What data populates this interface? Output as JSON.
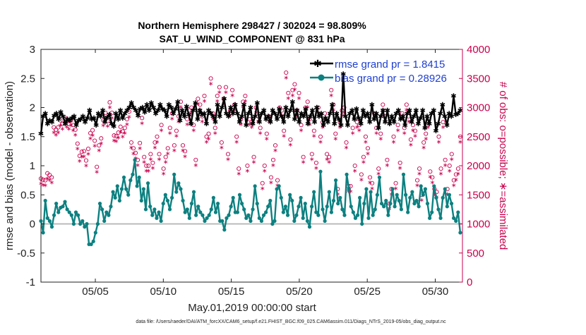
{
  "chart_data": {
    "type": "line",
    "title": "Northern Hemisphere 298427 / 302024 = 98.809%",
    "subtitle": "SAT_U_WIND_COMPONENT @ 831 hPa",
    "xlabel": "May.01,2019 00:00:00 start",
    "ylabel": "rmse and bias (model - observation)",
    "ylabel_right": "# of obs: o=possible; ∗=assimilated",
    "ylim": [
      -1,
      3
    ],
    "ylim_right": [
      0,
      4000
    ],
    "xlim": [
      1,
      32
    ],
    "y_ticks": [
      "-1",
      "-0.5",
      "0",
      "0.5",
      "1",
      "1.5",
      "2",
      "2.5",
      "3"
    ],
    "y_ticks_right": [
      "0",
      "500",
      "1000",
      "1500",
      "2000",
      "2500",
      "3000",
      "3500",
      "4000"
    ],
    "x_ticks": [
      {
        "label": "05/05",
        "day": 5
      },
      {
        "label": "05/10",
        "day": 10
      },
      {
        "label": "05/15",
        "day": 15
      },
      {
        "label": "05/20",
        "day": 20
      },
      {
        "label": "05/25",
        "day": 25
      },
      {
        "label": "05/30",
        "day": 30
      }
    ],
    "series": [
      {
        "name": "rmse grand pr = 1.8415",
        "color": "#000000",
        "marker": "star",
        "values": [
          1.55,
          1.85,
          1.9,
          1.72,
          1.78,
          1.75,
          1.86,
          1.9,
          1.8,
          1.92,
          1.85,
          1.72,
          1.8,
          1.78,
          1.82,
          1.85,
          1.7,
          1.78,
          1.8,
          1.85,
          1.75,
          1.82,
          1.95,
          1.8,
          1.82,
          1.7,
          1.9,
          1.85,
          1.95,
          1.75,
          1.83,
          1.88,
          1.72,
          1.68,
          1.9,
          1.8,
          1.95,
          1.82,
          1.9,
          1.95,
          2.0,
          2.08,
          2.0,
          1.95,
          1.86,
          1.98,
          2.0,
          1.92,
          2.05,
          1.95,
          2.08,
          2.0,
          1.9,
          1.95,
          2.05,
          1.98,
          1.95,
          1.85,
          2.05,
          2.0,
          1.9,
          1.98,
          2.1,
          1.78,
          1.95,
          1.85,
          2.02,
          1.88,
          1.72,
          1.95,
          2.08,
          1.8,
          1.95,
          1.88,
          1.9,
          1.72,
          1.95,
          1.9,
          1.85,
          1.75,
          2.05,
          1.85,
          2.0,
          2.15,
          1.9,
          1.85,
          2.0,
          1.9,
          2.05,
          1.9,
          1.75,
          1.85,
          2.05,
          1.7,
          1.9,
          2.0,
          1.72,
          1.85,
          2.08,
          1.75,
          1.9,
          1.95,
          1.8,
          1.85,
          1.75,
          1.95,
          1.9,
          1.8,
          1.98,
          1.85,
          1.75,
          2.0,
          1.85,
          1.95,
          2.1,
          1.8,
          1.95,
          1.75,
          1.9,
          1.85,
          1.98,
          1.72,
          1.85,
          1.95,
          1.75,
          2.0,
          1.85,
          1.9,
          1.7,
          1.82,
          1.75,
          1.9,
          2.05,
          1.72,
          1.9,
          1.8,
          1.7,
          2.58,
          1.85,
          1.7,
          1.9,
          1.95,
          1.8,
          1.98,
          1.82,
          1.72,
          1.95,
          1.85,
          1.9,
          1.75,
          2.05,
          1.8,
          1.9,
          1.65,
          1.85,
          1.95,
          1.75,
          1.95,
          1.72,
          1.85,
          1.75,
          1.9,
          1.95,
          1.8,
          1.85,
          1.7,
          1.9,
          1.95,
          1.75,
          1.85,
          1.95,
          1.72,
          1.82,
          1.95,
          1.65,
          1.85,
          1.72,
          1.9,
          1.95,
          1.6,
          1.72,
          1.9,
          2.05,
          1.85,
          1.7,
          1.9,
          1.85,
          2.2,
          1.88,
          1.9,
          1.95
        ]
      },
      {
        "name": "bias grand pr = 0.28926",
        "color": "#0d8080",
        "marker": "circle",
        "values": [
          0.05,
          -0.15,
          0.4,
          0.1,
          0.05,
          -0.05,
          0.15,
          0.35,
          0.2,
          0.28,
          0.3,
          0.38,
          0.25,
          0.2,
          0.15,
          0.0,
          0.2,
          0.15,
          0.0,
          0.05,
          -0.05,
          0.0,
          -0.35,
          -0.35,
          -0.3,
          -0.15,
          0.0,
          0.35,
          0.25,
          0.05,
          0.2,
          0.15,
          0.3,
          0.55,
          0.45,
          0.65,
          0.4,
          0.6,
          0.8,
          0.6,
          0.5,
          0.75,
          0.85,
          1.1,
          0.65,
          0.8,
          0.4,
          0.6,
          0.25,
          0.7,
          0.3,
          0.15,
          0.25,
          0.1,
          0.2,
          0.05,
          0.35,
          0.5,
          0.4,
          0.25,
          0.45,
          0.85,
          0.55,
          0.7,
          0.6,
          0.4,
          0.2,
          0.25,
          0.1,
          0.35,
          0.55,
          0.15,
          0.3,
          0.2,
          0.15,
          0.05,
          0.1,
          0.15,
          0.25,
          0.45,
          0.2,
          0.35,
          0.05,
          0.05,
          -0.1,
          0.1,
          0.15,
          0.3,
          0.45,
          0.2,
          0.2,
          0.5,
          0.35,
          0.25,
          0.1,
          0.15,
          0.05,
          0.25,
          0.65,
          0.35,
          0.1,
          0.05,
          0.15,
          0.2,
          0.3,
          0.4,
          0.0,
          0.05,
          0.6,
          0.65,
          0.45,
          0.2,
          0.3,
          0.15,
          0.5,
          0.4,
          0.05,
          0.15,
          0.3,
          0.45,
          0.1,
          0.35,
          0.05,
          -0.05,
          0.3,
          0.55,
          0.2,
          0.15,
          0.9,
          0.25,
          0.05,
          0.3,
          0.55,
          0.2,
          0.4,
          0.75,
          0.35,
          0.45,
          0.25,
          0.15,
          0.85,
          0.6,
          0.3,
          0.2,
          0.1,
          0.15,
          0.45,
          0.0,
          0.35,
          0.6,
          0.1,
          0.55,
          0.15,
          0.25,
          0.5,
          0.8,
          0.35,
          0.3,
          0.4,
          0.15,
          0.35,
          0.6,
          0.3,
          0.5,
          0.4,
          0.25,
          0.85,
          0.5,
          0.2,
          0.45,
          0.55,
          0.35,
          0.4,
          0.3,
          0.65,
          0.5,
          0.6,
          0.35,
          0.1,
          0.2,
          0.65,
          0.45,
          0.25,
          0.1,
          0.45,
          0.6,
          0.3,
          0.5,
          0.35,
          0.1,
          0.05,
          0.2,
          -0.15
        ]
      }
    ],
    "obs_possible": [
      1780,
      1760,
      1750,
      1870,
      1840,
      1800,
      2660,
      2620,
      2660,
      2780,
      2720,
      2830,
      2760,
      2720,
      2780,
      2700,
      2620,
      2380,
      2170,
      2240,
      2250,
      2090,
      2290,
      2560,
      2610,
      2430,
      1980,
      2350,
      2470,
      2780,
      2910,
      2770,
      3090,
      2910,
      2520,
      2510,
      2570,
      2670,
      2590,
      2650,
      2800,
      2930,
      2400,
      2300,
      2220,
      2100,
      2390,
      2820,
      2150,
      2000,
      2000,
      2200,
      2050,
      2400,
      2500,
      2200,
      2700,
      1950,
      2150,
      2300,
      2650,
      2900,
      2350,
      2600,
      2850,
      3100,
      2350,
      2250,
      2800,
      2950,
      3000,
      2700,
      2100,
      3150,
      3050,
      2850,
      3200,
      2500,
      2550,
      3500,
      2900,
      2650,
      3200,
      3350,
      2400,
      3150,
      3350,
      2200,
      2950,
      3300,
      3050,
      2500,
      1950,
      2800,
      3100,
      3200,
      2000,
      2800,
      2750,
      2150,
      3000,
      2850,
      2650,
      1700,
      2000,
      2550,
      2850,
      1800,
      2100,
      2350,
      1750,
      3000,
      2950,
      2600,
      3600,
      3250,
      2450,
      3300,
      3400,
      2950,
      3250,
      2700,
      2150,
      3000,
      3100,
      2800,
      2200,
      2600,
      2050,
      3000,
      2500,
      2750,
      2900,
      2200,
      2150,
      3300,
      3050,
      2550,
      1600,
      2750,
      2950,
      3000,
      2400,
      1650,
      1650,
      2650,
      2000,
      2750,
      2700,
      1850,
      2150,
      2500,
      2300,
      1800,
      1700,
      2900,
      2650,
      1950,
      2550,
      3050,
      2850,
      2100,
      1350,
      1600,
      2500,
      1700,
      2700,
      2050,
      2900,
      2650,
      3050,
      2850,
      2450,
      2700,
      2600,
      1750,
      1950,
      1500,
      2400,
      2550,
      2750,
      1900,
      1800,
      1600,
      1550,
      2500,
      1950,
      2750,
      2100,
      1600,
      2000,
      2200,
      1750,
      1850,
      1950,
      2500
    ]
  },
  "legend": {
    "rmse_label": "rmse grand pr = 1.8415",
    "bias_label": "bias grand pr = 0.28926"
  },
  "colors": {
    "rmse": "#000000",
    "bias": "#0d8080",
    "obs": "#c8004b",
    "legend_text": "#1f3fd0"
  },
  "footer": "data file: /Users/raeder/DAI/ATM_forcXX/CAM6_setup/f.e21.FHIST_BGC.f09_025.CAM6assim.011/Diags_NTrS_2019-05/obs_diag_output.nc"
}
